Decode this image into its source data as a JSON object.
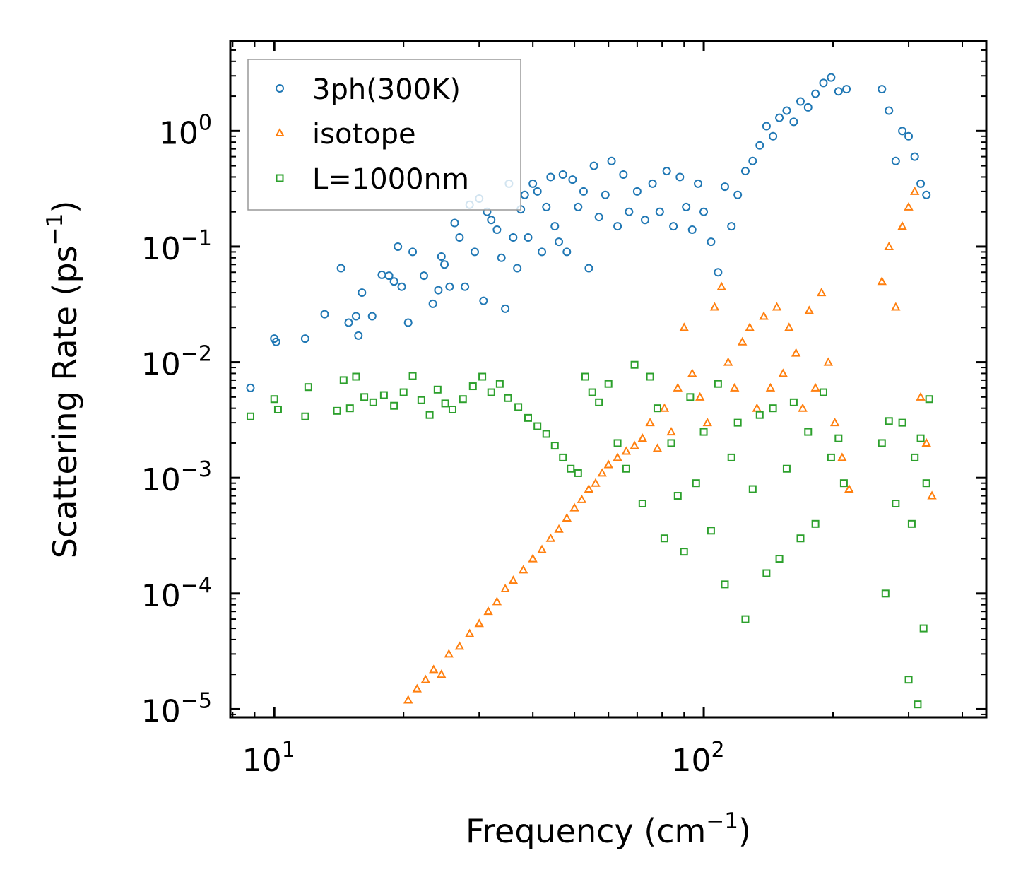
{
  "chart_data": {
    "type": "scatter",
    "title": "",
    "xlabel": "Frequency (cm",
    "xlabel_sup": "−1",
    "xlabel_end": ")",
    "ylabel": "Scattering Rate (ps",
    "ylabel_sup": "−1",
    "ylabel_end": ")",
    "xscale": "log",
    "yscale": "log",
    "xlim": [
      7.9,
      455
    ],
    "ylim": [
      8.5e-06,
      6.0
    ],
    "xticks": [
      {
        "value": 10,
        "base": "10",
        "exp": "1"
      },
      {
        "value": 100,
        "base": "10",
        "exp": "2"
      }
    ],
    "yticks": [
      {
        "value": 1,
        "base": "10",
        "exp": "0"
      },
      {
        "value": 0.1,
        "base": "10",
        "exp": "−1"
      },
      {
        "value": 0.01,
        "base": "10",
        "exp": "−2"
      },
      {
        "value": 0.001,
        "base": "10",
        "exp": "−3"
      },
      {
        "value": 0.0001,
        "base": "10",
        "exp": "−4"
      },
      {
        "value": 1e-05,
        "base": "10",
        "exp": "−5"
      }
    ],
    "legend_position": "upper-left",
    "series": [
      {
        "name": "3ph(300K)",
        "marker": "circle",
        "color": "#1f77b4",
        "x": [
          8.8,
          10.0,
          10.1,
          11.8,
          13.1,
          14.3,
          14.9,
          15.5,
          15.7,
          16.0,
          16.9,
          17.8,
          18.5,
          19.0,
          19.4,
          19.8,
          20.5,
          21.0,
          22.3,
          23.4,
          24.1,
          24.5,
          24.9,
          25.6,
          26.3,
          27.0,
          27.8,
          28.5,
          29.3,
          30.0,
          30.7,
          31.3,
          32.0,
          33.0,
          33.8,
          34.5,
          35.2,
          36.0,
          36.8,
          37.5,
          38.3,
          39.0,
          40.0,
          41.0,
          42.0,
          43.0,
          44.0,
          45.0,
          46.0,
          47.0,
          48.0,
          49.5,
          51.0,
          52.5,
          54.0,
          55.5,
          57.0,
          59.0,
          61.0,
          63.0,
          65.0,
          67.0,
          70.0,
          73.0,
          76.0,
          79.0,
          82.0,
          85.0,
          88.0,
          91.0,
          94.0,
          97.0,
          100.0,
          104.0,
          108.0,
          112.0,
          116.0,
          120.0,
          125.0,
          130.0,
          135.0,
          140.0,
          145.0,
          150.0,
          156.0,
          162.0,
          168.0,
          175.0,
          182.0,
          190.0,
          198.0,
          206.0,
          215.0,
          260.0,
          270.0,
          280.0,
          290.0,
          300.0,
          310.0,
          320.0,
          330.0
        ],
        "y": [
          0.006,
          0.016,
          0.015,
          0.016,
          0.026,
          0.065,
          0.022,
          0.025,
          0.017,
          0.04,
          0.025,
          0.057,
          0.056,
          0.05,
          0.1,
          0.045,
          0.022,
          0.09,
          0.056,
          0.032,
          0.042,
          0.082,
          0.07,
          0.045,
          0.16,
          0.12,
          0.045,
          0.23,
          0.09,
          0.26,
          0.034,
          0.2,
          0.17,
          0.14,
          0.08,
          0.029,
          0.35,
          0.12,
          0.065,
          0.21,
          0.28,
          0.12,
          0.35,
          0.3,
          0.09,
          0.22,
          0.4,
          0.15,
          0.11,
          0.42,
          0.09,
          0.38,
          0.22,
          0.3,
          0.065,
          0.5,
          0.18,
          0.28,
          0.55,
          0.15,
          0.42,
          0.2,
          0.3,
          0.17,
          0.35,
          0.2,
          0.45,
          0.15,
          0.4,
          0.22,
          0.14,
          0.35,
          0.2,
          0.11,
          0.06,
          0.33,
          0.15,
          0.28,
          0.45,
          0.55,
          0.75,
          1.1,
          0.9,
          1.3,
          1.5,
          1.2,
          1.8,
          1.6,
          2.1,
          2.6,
          2.9,
          2.2,
          2.3,
          2.3,
          1.5,
          0.55,
          1.0,
          0.9,
          0.6,
          0.35,
          0.28
        ]
      },
      {
        "name": "isotope",
        "marker": "triangle",
        "color": "#ff7f0e",
        "x": [
          20.5,
          21.5,
          22.5,
          23.5,
          24.5,
          25.5,
          27.0,
          28.5,
          30.0,
          31.5,
          33.0,
          34.5,
          36.0,
          38.0,
          40.0,
          42.0,
          44.0,
          46.0,
          48.0,
          50.0,
          52.0,
          54.0,
          56.0,
          58.0,
          60.0,
          63.0,
          66.0,
          69.0,
          72.0,
          75.0,
          78.0,
          81.0,
          84.0,
          87.0,
          90.0,
          94.0,
          98.0,
          102.0,
          106.0,
          110.0,
          114.0,
          118.0,
          123.0,
          128.0,
          133.0,
          138.0,
          143.0,
          148.0,
          153.0,
          158.0,
          164.0,
          170.0,
          176.0,
          182.0,
          188.0,
          195.0,
          202.0,
          210.0,
          218.0,
          260.0,
          270.0,
          280.0,
          290.0,
          300.0,
          310.0,
          320.0,
          330.0,
          340.0
        ],
        "y": [
          1.2e-05,
          1.5e-05,
          1.8e-05,
          2.2e-05,
          2e-05,
          3e-05,
          3.5e-05,
          4.5e-05,
          5.5e-05,
          7e-05,
          8.5e-05,
          0.00011,
          0.00013,
          0.00016,
          0.0002,
          0.00024,
          0.0003,
          0.00036,
          0.00045,
          0.00055,
          0.00065,
          0.0008,
          0.0009,
          0.0011,
          0.0013,
          0.0015,
          0.0017,
          0.0019,
          0.0022,
          0.003,
          0.0018,
          0.004,
          0.0025,
          0.006,
          0.02,
          0.008,
          0.005,
          0.003,
          0.03,
          0.045,
          0.01,
          0.006,
          0.015,
          0.02,
          0.004,
          0.025,
          0.006,
          0.03,
          0.008,
          0.02,
          0.012,
          0.004,
          0.028,
          0.006,
          0.04,
          0.01,
          0.003,
          0.0015,
          0.0008,
          0.05,
          0.1,
          0.03,
          0.15,
          0.22,
          0.3,
          0.005,
          0.002,
          0.0007
        ]
      },
      {
        "name": "L=1000nm",
        "marker": "square",
        "color": "#2ca02c",
        "x": [
          8.8,
          10.0,
          10.2,
          11.8,
          12.0,
          14.0,
          14.5,
          15.0,
          15.5,
          16.2,
          17.0,
          18.0,
          19.0,
          20.0,
          21.0,
          22.0,
          23.0,
          24.0,
          25.0,
          26.0,
          27.5,
          29.0,
          30.5,
          32.0,
          33.5,
          35.0,
          37.0,
          39.0,
          41.0,
          43.0,
          45.0,
          47.0,
          49.0,
          51.0,
          53.0,
          55.0,
          57.0,
          60.0,
          63.0,
          66.0,
          69.0,
          72.0,
          75.0,
          78.0,
          81.0,
          84.0,
          87.0,
          90.0,
          93.0,
          96.0,
          100.0,
          104.0,
          108.0,
          112.0,
          116.0,
          120.0,
          125.0,
          130.0,
          135.0,
          140.0,
          145.0,
          150.0,
          156.0,
          162.0,
          168.0,
          175.0,
          182.0,
          190.0,
          198.0,
          206.0,
          212.0,
          260.0,
          265.0,
          270.0,
          280.0,
          290.0,
          300.0,
          305.0,
          310.0,
          315.0,
          320.0,
          325.0,
          330.0,
          335.0
        ],
        "y": [
          0.0034,
          0.0048,
          0.0039,
          0.0034,
          0.0061,
          0.0038,
          0.007,
          0.004,
          0.0075,
          0.005,
          0.0045,
          0.0052,
          0.0042,
          0.0055,
          0.0076,
          0.0047,
          0.0035,
          0.0058,
          0.0044,
          0.0039,
          0.0048,
          0.0062,
          0.0075,
          0.0055,
          0.0065,
          0.0049,
          0.0041,
          0.0033,
          0.0028,
          0.0024,
          0.0019,
          0.0015,
          0.0012,
          0.0011,
          0.0075,
          0.0055,
          0.0045,
          0.0065,
          0.002,
          0.0012,
          0.0095,
          0.0006,
          0.0075,
          0.004,
          0.0003,
          0.002,
          0.0007,
          0.00023,
          0.005,
          0.0009,
          0.0025,
          0.00035,
          0.0065,
          0.00012,
          0.0015,
          0.003,
          6e-05,
          0.0008,
          0.0035,
          0.00015,
          0.004,
          0.0002,
          0.0012,
          0.0045,
          0.0003,
          0.0025,
          0.0004,
          0.0055,
          0.0015,
          0.0022,
          0.0009,
          0.002,
          0.0001,
          0.0031,
          0.0006,
          0.003,
          1.8e-05,
          0.0004,
          0.0015,
          1.1e-05,
          0.0022,
          5e-05,
          0.0009,
          0.0048
        ]
      }
    ]
  }
}
